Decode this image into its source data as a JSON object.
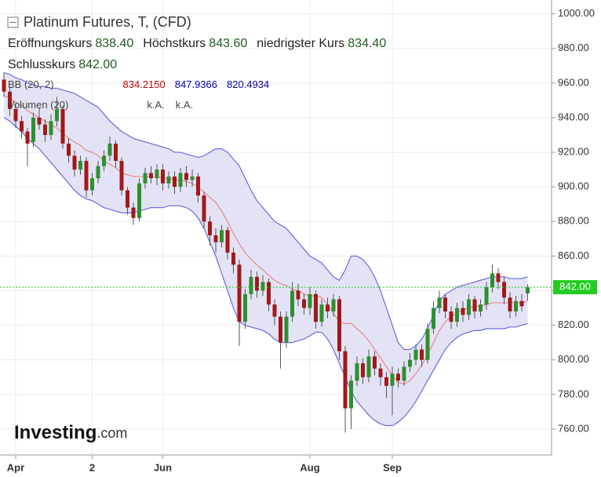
{
  "header": {
    "title": "Platinum Futures, T, (CFD)",
    "open_label": "Eröffnungskurs",
    "open": "838.40",
    "high_label": "Höchstkurs",
    "high": "843.60",
    "low_label": "niedrigster Kurs",
    "low": "834.40",
    "close_label": "Schlusskurs",
    "close": "842.00",
    "bb_label": "BB (20, 2)",
    "bb_middle": "834.2150",
    "bb_upper": "847.9366",
    "bb_lower": "820.4934",
    "vol_label": "Volumen (20)",
    "vol_a": "k.A.",
    "vol_b": "k.A."
  },
  "watermark": {
    "brand": "Investing",
    "suffix": ".com"
  },
  "chart_data": {
    "type": "candlestick",
    "categories": [
      null,
      null,
      "Apr",
      null,
      null,
      null,
      null,
      null,
      null,
      null,
      null,
      null,
      null,
      null,
      null,
      "2",
      null,
      null,
      null,
      null,
      null,
      null,
      null,
      null,
      null,
      null,
      null,
      "Jun",
      null,
      null,
      null,
      null,
      null,
      null,
      null,
      null,
      null,
      null,
      null,
      null,
      null,
      null,
      null,
      null,
      null,
      null,
      null,
      null,
      null,
      null,
      null,
      null,
      "Aug",
      null,
      null,
      null,
      null,
      null,
      null,
      null,
      null,
      null,
      null,
      null,
      null,
      null,
      "Sep",
      null,
      null,
      null,
      null,
      null,
      null,
      null,
      null,
      null,
      null,
      null,
      null,
      null,
      null,
      null,
      null,
      null,
      null,
      null,
      null,
      null,
      null,
      null
    ],
    "open": [
      962,
      955,
      945,
      938,
      932,
      926,
      940,
      936,
      930,
      938,
      945,
      925,
      918,
      910,
      915,
      898,
      905,
      912,
      918,
      925,
      915,
      898,
      888,
      882,
      902,
      908,
      905,
      910,
      902,
      906,
      900,
      908,
      904,
      906,
      895,
      880,
      872,
      868,
      875,
      862,
      855,
      822,
      838,
      848,
      840,
      845,
      832,
      825,
      810,
      825,
      840,
      835,
      830,
      838,
      822,
      832,
      828,
      835,
      805,
      772,
      788,
      798,
      790,
      802,
      795,
      790,
      785,
      792,
      788,
      796,
      800,
      806,
      800,
      818,
      830,
      836,
      828,
      822,
      830,
      826,
      835,
      828,
      832,
      842,
      850,
      845,
      836,
      828,
      834,
      838.4
    ],
    "high": [
      966,
      958,
      948,
      941,
      934,
      943,
      946,
      939,
      942,
      952,
      947,
      928,
      921,
      918,
      917,
      908,
      915,
      921,
      929,
      927,
      917,
      900,
      891,
      905,
      911,
      912,
      913,
      913,
      909,
      909,
      911,
      912,
      910,
      908,
      897,
      883,
      876,
      878,
      877,
      865,
      858,
      841,
      852,
      851,
      849,
      847,
      835,
      828,
      828,
      845,
      844,
      838,
      842,
      840,
      835,
      836,
      838,
      837,
      808,
      791,
      802,
      801,
      806,
      805,
      798,
      793,
      796,
      795,
      799,
      804,
      809,
      809,
      821,
      834,
      840,
      838,
      831,
      833,
      834,
      838,
      837,
      835,
      845,
      855,
      853,
      848,
      839,
      837,
      838,
      843.6
    ],
    "low": [
      952,
      941,
      934,
      928,
      912,
      923,
      933,
      926,
      927,
      935,
      922,
      914,
      906,
      907,
      894,
      895,
      902,
      909,
      915,
      911,
      895,
      884,
      878,
      880,
      899,
      902,
      901,
      898,
      899,
      896,
      897,
      900,
      900,
      891,
      876,
      866,
      862,
      865,
      858,
      850,
      808,
      818,
      835,
      836,
      837,
      828,
      820,
      795,
      807,
      822,
      831,
      826,
      826,
      818,
      819,
      824,
      825,
      800,
      758,
      760,
      785,
      786,
      787,
      791,
      785,
      778,
      768,
      784,
      785,
      793,
      797,
      796,
      798,
      815,
      827,
      824,
      818,
      819,
      822,
      823,
      824,
      825,
      829,
      839,
      841,
      832,
      824,
      825,
      828,
      834.4
    ],
    "close": [
      955,
      945,
      938,
      932,
      925,
      940,
      936,
      930,
      938,
      945,
      925,
      918,
      910,
      915,
      898,
      905,
      912,
      918,
      925,
      915,
      898,
      888,
      882,
      902,
      908,
      905,
      910,
      902,
      906,
      900,
      908,
      904,
      906,
      895,
      880,
      872,
      868,
      875,
      862,
      855,
      822,
      838,
      848,
      840,
      845,
      832,
      825,
      810,
      825,
      840,
      835,
      830,
      838,
      822,
      832,
      828,
      835,
      805,
      772,
      788,
      798,
      790,
      802,
      795,
      790,
      785,
      792,
      788,
      796,
      800,
      806,
      800,
      818,
      830,
      836,
      828,
      822,
      830,
      826,
      835,
      828,
      832,
      842,
      850,
      845,
      836,
      828,
      834,
      831,
      842
    ],
    "bb_upper": [
      966,
      965,
      963,
      962,
      960,
      959,
      958,
      958,
      957,
      957,
      956,
      955,
      954,
      952,
      950,
      948,
      946,
      942,
      938,
      935,
      932,
      930,
      928,
      927,
      926,
      925,
      924,
      923,
      922,
      920,
      920,
      919,
      918,
      917,
      918,
      920,
      922,
      922,
      920,
      916,
      912,
      905,
      898,
      892,
      888,
      884,
      880,
      878,
      876,
      872,
      868,
      864,
      860,
      858,
      856,
      852,
      848,
      846,
      852,
      860,
      860,
      858,
      854,
      848,
      840,
      830,
      820,
      810,
      806,
      806,
      808,
      812,
      818,
      826,
      834,
      838,
      840,
      842,
      843,
      844,
      845,
      846,
      847,
      848,
      848,
      848,
      847,
      847,
      847,
      848
    ],
    "bb_middle": [
      953,
      951,
      949,
      947,
      944,
      942,
      940,
      938,
      936,
      934,
      931,
      928,
      926,
      924,
      921,
      920,
      918,
      915,
      913,
      911,
      908,
      907,
      906,
      906,
      906,
      906,
      906,
      905,
      905,
      904,
      904,
      903,
      902,
      900,
      897,
      894,
      891,
      886,
      880,
      873,
      867,
      862,
      858,
      855,
      852,
      849,
      846,
      844,
      843,
      841,
      840,
      838,
      837,
      837,
      836,
      832,
      827,
      822,
      821,
      821,
      818,
      815,
      811,
      806,
      801,
      796,
      791,
      787,
      786,
      788,
      792,
      797,
      803,
      810,
      817,
      822,
      825,
      827,
      829,
      830,
      831,
      831,
      832,
      833,
      833,
      833,
      833,
      833,
      833,
      834
    ],
    "bb_lower": [
      940,
      938,
      935,
      932,
      928,
      925,
      922,
      918,
      914,
      910,
      906,
      902,
      898,
      895,
      893,
      892,
      890,
      888,
      887,
      886,
      885,
      885,
      885,
      886,
      887,
      888,
      888,
      888,
      889,
      889,
      889,
      888,
      886,
      882,
      876,
      868,
      860,
      850,
      840,
      830,
      822,
      820,
      819,
      818,
      817,
      815,
      812,
      810,
      810,
      810,
      811,
      812,
      814,
      816,
      816,
      812,
      806,
      798,
      790,
      782,
      776,
      772,
      768,
      765,
      763,
      762,
      762,
      764,
      767,
      771,
      776,
      782,
      788,
      794,
      800,
      806,
      810,
      813,
      815,
      816,
      817,
      817,
      818,
      818,
      818,
      818,
      819,
      819,
      820,
      821
    ],
    "up_color": "#2f8f2f",
    "down_color": "#a3181a",
    "band_fill": "#dcdcf3",
    "band_color": "#6b6be0",
    "middle_color": "#e58a8a",
    "last_price": {
      "value": 842,
      "label": "842.00"
    },
    "ylim": [
      745,
      1008
    ],
    "yticks": [
      {
        "value": 760,
        "label": "760.00"
      },
      {
        "value": 780,
        "label": "780.00"
      },
      {
        "value": 800,
        "label": "800.00"
      },
      {
        "value": 820,
        "label": "820.00"
      },
      {
        "value": 840,
        "label": "840.00"
      },
      {
        "value": 860,
        "label": "860.00"
      },
      {
        "value": 880,
        "label": "880.00"
      },
      {
        "value": 900,
        "label": "900.00"
      },
      {
        "value": 920,
        "label": "920.00"
      },
      {
        "value": 940,
        "label": "940.00"
      },
      {
        "value": 960,
        "label": "960.00"
      },
      {
        "value": 980,
        "label": "980.00"
      },
      {
        "value": 1000,
        "label": "1000.00"
      }
    ],
    "grid": true
  }
}
